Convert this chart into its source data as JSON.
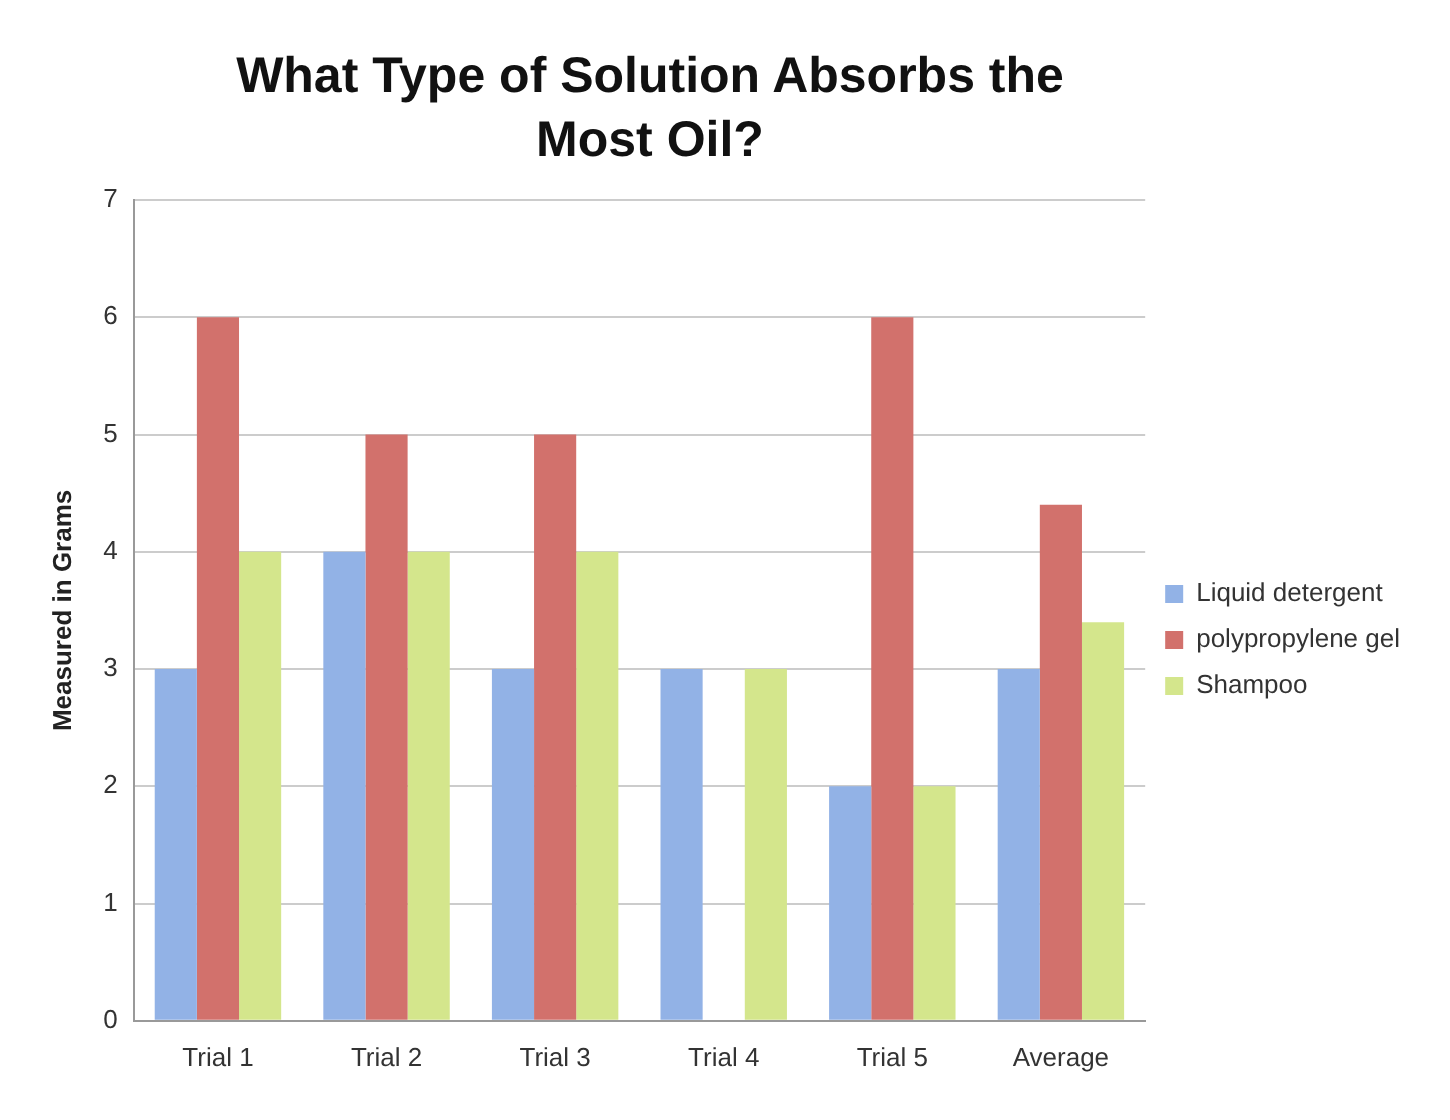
{
  "chart_data": {
    "type": "bar",
    "title": "What Type of Solution Absorbs the Most Oil?",
    "ylabel": "Measured in Grams",
    "categories": [
      "Trial 1",
      "Trial 2",
      "Trial 3",
      "Trial 4",
      "Trial 5",
      "Average"
    ],
    "series": [
      {
        "name": "Liquid detergent",
        "color": "#92b2e6",
        "values": [
          3,
          4,
          3,
          3,
          2,
          3
        ]
      },
      {
        "name": "polypropylene gel",
        "color": "#d2716c",
        "values": [
          6,
          5,
          5,
          0,
          6,
          4.4
        ]
      },
      {
        "name": "Shampoo",
        "color": "#d4e68c",
        "values": [
          4,
          4,
          4,
          3,
          2,
          3.4
        ]
      }
    ],
    "ylim": [
      0,
      7
    ],
    "yticks": [
      0,
      1,
      2,
      3,
      4,
      5,
      6,
      7
    ],
    "grid": "y",
    "legend": "right"
  }
}
